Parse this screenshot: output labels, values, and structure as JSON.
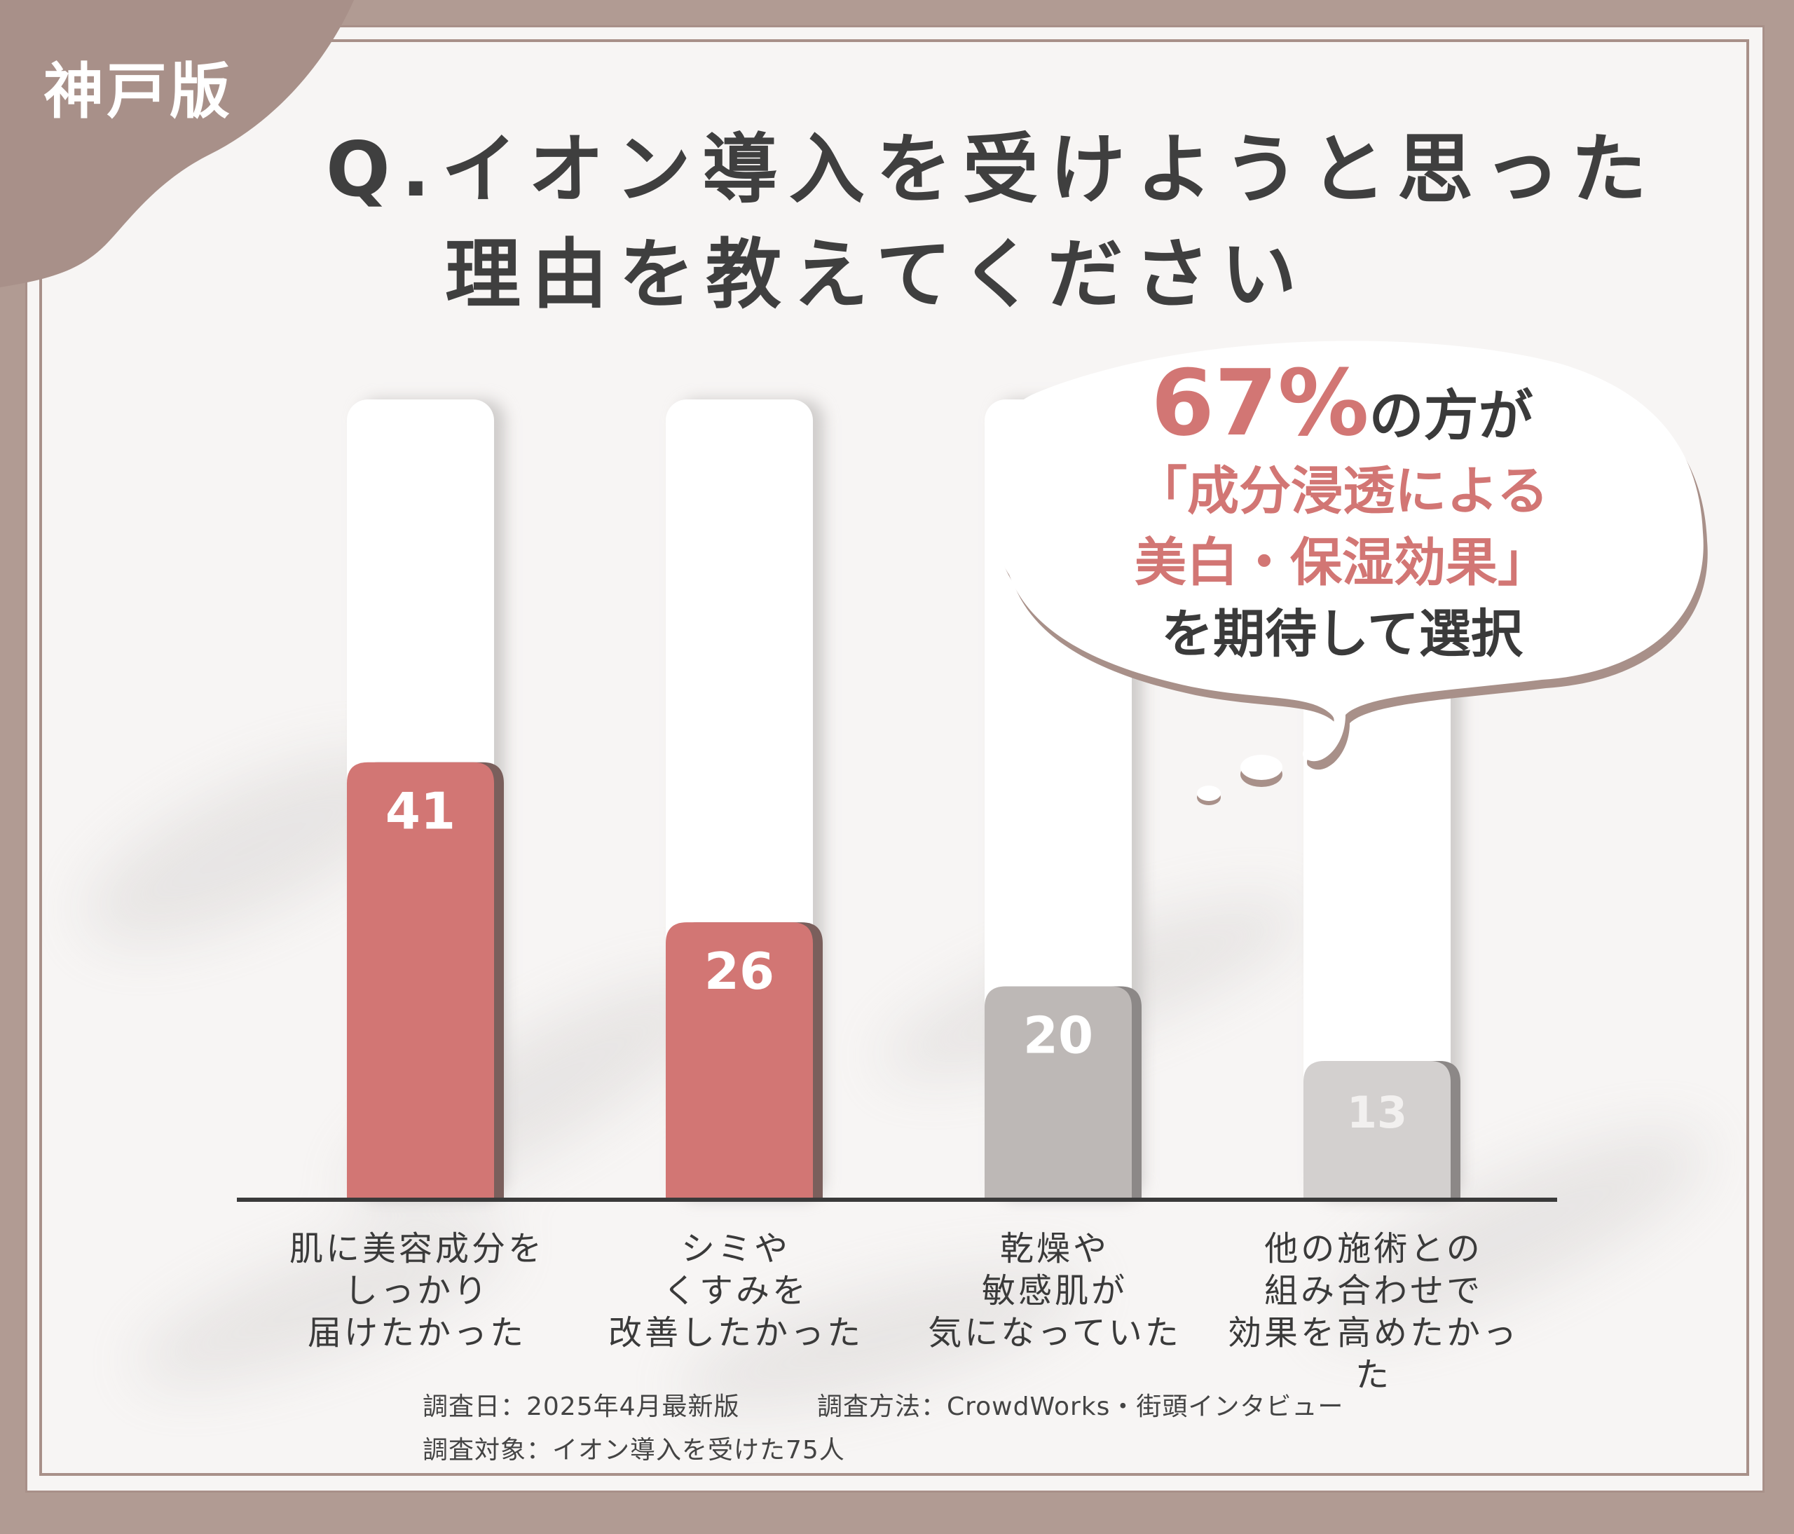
{
  "badge": {
    "label": "神戸版"
  },
  "title": {
    "line1": "Q.イオン導入を受けようと思った",
    "line2": "理由を教えてください"
  },
  "callout": {
    "percent": "67%",
    "suffix": "の方が",
    "line2": "「成分浸透による",
    "line3": "美白・保湿効果」",
    "line4": "を期待して選択"
  },
  "chart_data": {
    "type": "bar",
    "categories": [
      "肌に美容成分を\nしっかり\n届けたかった",
      "シミや\nくすみを\n改善したかった",
      "乾燥や\n敏感肌が\n気になっていた",
      "他の施術との\n組み合わせで\n効果を高めたかった"
    ],
    "values": [
      41,
      26,
      20,
      13
    ],
    "bar_colors": [
      "#d27674",
      "#d27674",
      "#bdb8b6",
      "#d3d0cf"
    ],
    "data_labels": [
      "41",
      "26",
      "20",
      "13"
    ],
    "ylim": [
      0,
      75
    ]
  },
  "survey": {
    "date": "調査日：2025年4月最新版",
    "method": "調査方法：CrowdWorks・街頭インタビュー",
    "target": "調査対象：イオン導入を受けた75人"
  },
  "colors": {
    "accent": "#d27674",
    "frame": "#b19b93",
    "gray_bar": "#bdb8b6"
  }
}
